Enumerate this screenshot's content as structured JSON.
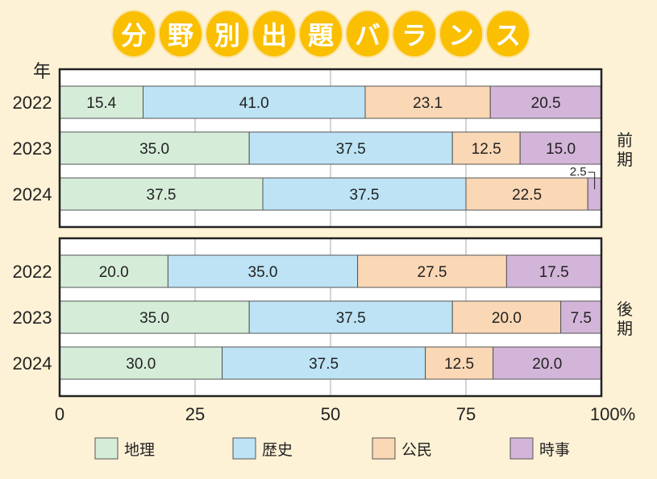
{
  "title_chars": [
    "分",
    "野",
    "別",
    "出",
    "題",
    "バ",
    "ラ",
    "ン",
    "ス"
  ],
  "chart_data": {
    "type": "bar",
    "orientation": "horizontal-stacked-100",
    "title": "分野別出題バランス",
    "ylabel": "年",
    "xlim": [
      0,
      100
    ],
    "xticks": [
      "0",
      "25",
      "50",
      "75",
      "100%"
    ],
    "xtick_values": [
      0,
      25,
      50,
      75,
      100
    ],
    "grid": true,
    "legend_placement": "bottom",
    "series_names": [
      "地理",
      "歴史",
      "公民",
      "時事"
    ],
    "colors": [
      "#d5ecd9",
      "#bde3f5",
      "#fad7b5",
      "#d3b5d9"
    ],
    "panels": [
      {
        "label": "前期",
        "categories": [
          "2022",
          "2023",
          "2024"
        ],
        "values": [
          [
            15.4,
            41.0,
            23.1,
            20.5
          ],
          [
            35.0,
            37.5,
            12.5,
            15.0
          ],
          [
            37.5,
            37.5,
            22.5,
            2.5
          ]
        ]
      },
      {
        "label": "後期",
        "categories": [
          "2022",
          "2023",
          "2024"
        ],
        "values": [
          [
            20.0,
            35.0,
            27.5,
            17.5
          ],
          [
            35.0,
            37.5,
            20.0,
            7.5
          ],
          [
            30.0,
            37.5,
            12.5,
            20.0
          ]
        ]
      }
    ]
  }
}
